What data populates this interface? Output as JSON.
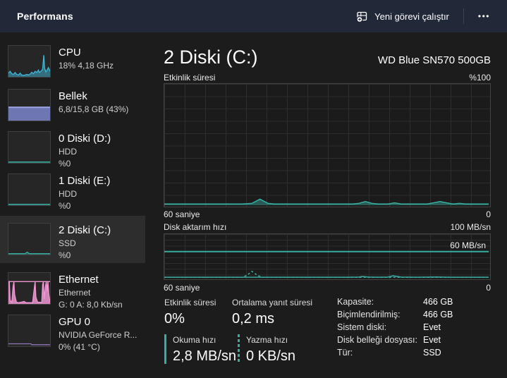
{
  "window": {
    "title": "Performans"
  },
  "header": {
    "run_task_label": "Yeni görevi çalıştır",
    "more_label": "•••"
  },
  "colors": {
    "header_bg": "#212838",
    "body_bg": "#1c1c1c",
    "selected_bg": "#2d2d2d",
    "disk_teal": "#3aada2",
    "cpu_blue": "#3fb7d8",
    "memory_purple": "#7c86cd",
    "memory_edge": "#9aa3e3",
    "ethernet_pink": "#ef97d3",
    "gpu_purple": "#8f77b5"
  },
  "sidebar": {
    "items": [
      {
        "id": "cpu",
        "title": "CPU",
        "line1": "18% 4,18 GHz",
        "line2": "",
        "spark": {
          "kind": "area",
          "color": "#3fb7d8",
          "fillOpacity": 0.5,
          "points": [
            [
              0,
              12
            ],
            [
              4,
              18
            ],
            [
              8,
              10
            ],
            [
              12,
              8
            ],
            [
              16,
              14
            ],
            [
              20,
              8
            ],
            [
              24,
              6
            ],
            [
              28,
              12
            ],
            [
              32,
              6
            ],
            [
              36,
              5
            ],
            [
              40,
              6
            ],
            [
              44,
              8
            ],
            [
              48,
              6
            ],
            [
              52,
              9
            ],
            [
              56,
              15
            ],
            [
              60,
              10
            ],
            [
              64,
              18
            ],
            [
              68,
              14
            ],
            [
              72,
              22
            ],
            [
              74,
              14
            ],
            [
              78,
              18
            ],
            [
              82,
              24
            ],
            [
              85,
              70
            ],
            [
              87,
              28
            ],
            [
              90,
              16
            ],
            [
              93,
              22
            ],
            [
              96,
              30
            ],
            [
              100,
              18
            ]
          ]
        }
      },
      {
        "id": "memory",
        "title": "Bellek",
        "line1": "6,8/15,8 GB (43%)",
        "line2": "",
        "spark": {
          "kind": "bar",
          "color": "#7c86cd",
          "edge": "#9aa3e3",
          "value": 43
        }
      },
      {
        "id": "disk0",
        "title": "0 Diski (D:)",
        "line1": "HDD",
        "line2": "%0",
        "spark": {
          "kind": "area",
          "color": "#3aada2",
          "fillOpacity": 0.4,
          "points": [
            [
              0,
              3
            ],
            [
              100,
              3
            ]
          ]
        }
      },
      {
        "id": "disk1",
        "title": "1 Diski (E:)",
        "line1": "HDD",
        "line2": "%0",
        "spark": {
          "kind": "area",
          "color": "#3aada2",
          "fillOpacity": 0.4,
          "points": [
            [
              0,
              3
            ],
            [
              100,
              3
            ]
          ]
        }
      },
      {
        "id": "disk2",
        "title": "2 Diski (C:)",
        "line1": "SSD",
        "line2": "%0",
        "selected": true,
        "spark": {
          "kind": "area",
          "color": "#3aada2",
          "fillOpacity": 0.4,
          "points": [
            [
              0,
              3
            ],
            [
              40,
              3
            ],
            [
              45,
              8
            ],
            [
              50,
              3
            ],
            [
              100,
              3
            ]
          ]
        }
      },
      {
        "id": "ethernet",
        "title": "Ethernet",
        "line1": "Ethernet",
        "line2": "G: 0 A: 8,0 Kb/sn",
        "spark": {
          "kind": "area",
          "color": "#ef97d3",
          "fillOpacity": 0.85,
          "hline": 72,
          "points": [
            [
              0,
              70
            ],
            [
              2,
              72
            ],
            [
              4,
              12
            ],
            [
              8,
              5
            ],
            [
              11,
              55
            ],
            [
              13,
              72
            ],
            [
              15,
              30
            ],
            [
              19,
              6
            ],
            [
              24,
              4
            ],
            [
              38,
              8
            ],
            [
              42,
              4
            ],
            [
              58,
              4
            ],
            [
              62,
              50
            ],
            [
              64,
              72
            ],
            [
              66,
              22
            ],
            [
              70,
              6
            ],
            [
              80,
              5
            ],
            [
              82,
              62
            ],
            [
              84,
              72
            ],
            [
              86,
              16
            ],
            [
              89,
              58
            ],
            [
              91,
              72
            ],
            [
              93,
              40
            ],
            [
              95,
              72
            ],
            [
              97,
              32
            ],
            [
              100,
              6
            ]
          ]
        }
      },
      {
        "id": "gpu",
        "title": "GPU 0",
        "line1": "NVIDIA GeForce R...",
        "line2": "0% (41 °C)",
        "spark": {
          "kind": "line",
          "color": "#8f77b5",
          "points": [
            [
              0,
              8
            ],
            [
              54,
              8
            ],
            [
              56,
              5
            ],
            [
              100,
              5
            ]
          ]
        }
      }
    ]
  },
  "main": {
    "title": "2 Diski (C:)",
    "device": "WD Blue SN570 500GB",
    "stats": {
      "left": [
        {
          "label": "Etkinlik süresi",
          "value": "0%"
        },
        {
          "label": "Ortalama yanıt süresi",
          "value": "0,2 ms"
        },
        {
          "label": "Okuma hızı",
          "value": "2,8 MB/sn",
          "marker": "solid"
        },
        {
          "label": "Yazma hızı",
          "value": "0 KB/sn",
          "marker": "dashed"
        }
      ],
      "right": [
        {
          "label": "Kapasite:",
          "value": "466 GB"
        },
        {
          "label": "Biçimlendirilmiş:",
          "value": "466 GB"
        },
        {
          "label": "Sistem diski:",
          "value": "Evet"
        },
        {
          "label": "Disk belleği dosyası:",
          "value": "Evet"
        },
        {
          "label": "Tür:",
          "value": "SSD"
        }
      ]
    }
  },
  "chart_data": [
    {
      "type": "area",
      "title": "Etkinlik süresi",
      "max_label": "%100",
      "ylim": [
        0,
        100
      ],
      "unit": "%",
      "x_axis": {
        "left": "60 saniye",
        "right": "0"
      },
      "grid": true,
      "color": "#3aada2",
      "series": [
        {
          "name": "Etkinlik süresi",
          "points": [
            [
              0,
              1
            ],
            [
              24,
              1
            ],
            [
              27,
              1.5
            ],
            [
              29.5,
              5
            ],
            [
              32,
              1.5
            ],
            [
              34,
              1
            ],
            [
              58,
              1
            ],
            [
              60,
              1.5
            ],
            [
              62,
              3
            ],
            [
              64,
              1.5
            ],
            [
              66,
              1
            ],
            [
              69,
              1
            ],
            [
              71,
              2
            ],
            [
              73,
              1
            ],
            [
              81,
              1
            ],
            [
              83,
              2
            ],
            [
              85,
              3
            ],
            [
              87,
              2
            ],
            [
              89,
              1
            ],
            [
              91,
              1.5
            ],
            [
              93,
              1
            ],
            [
              100,
              1
            ]
          ]
        }
      ]
    },
    {
      "type": "line",
      "title": "Disk aktarım hızı",
      "max_label": "100 MB/sn",
      "ylim": [
        0,
        100
      ],
      "unit": "MB/sn",
      "x_axis": {
        "left": "60 saniye",
        "right": "0"
      },
      "grid": true,
      "color": "#3aada2",
      "marker": {
        "value": 60,
        "label": "60 MB/sn"
      },
      "series": [
        {
          "name": "Okuma hızı",
          "style": "solid",
          "points": [
            [
              0,
              1.5
            ],
            [
              56,
              1.5
            ],
            [
              60,
              1.8
            ],
            [
              61,
              3
            ],
            [
              63,
              1.8
            ],
            [
              66,
              1.5
            ],
            [
              69,
              1.8
            ],
            [
              70.5,
              4.5
            ],
            [
              73,
              1.8
            ],
            [
              78,
              1.5
            ],
            [
              84,
              2
            ],
            [
              88,
              1.5
            ],
            [
              100,
              1.5
            ]
          ]
        },
        {
          "name": "Yazma hızı",
          "style": "dashed",
          "points": [
            [
              0,
              0.8
            ],
            [
              24,
              0.8
            ],
            [
              25.5,
              6
            ],
            [
              27,
              15
            ],
            [
              28.5,
              7
            ],
            [
              30,
              0.8
            ],
            [
              100,
              0.8
            ]
          ]
        }
      ]
    }
  ]
}
